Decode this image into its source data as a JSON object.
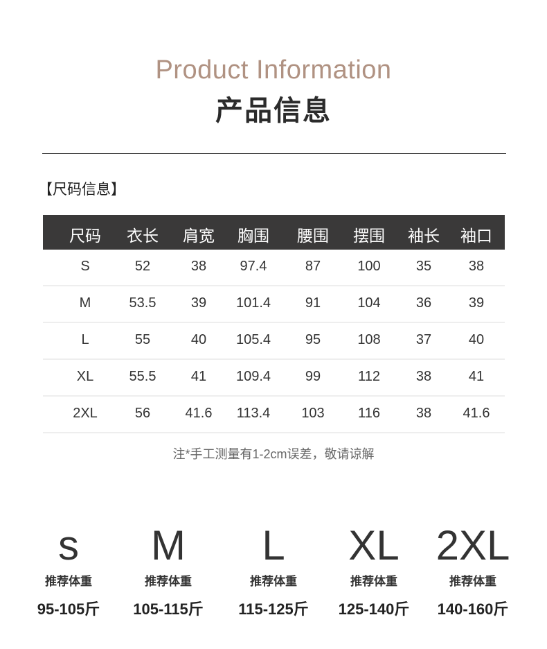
{
  "header": {
    "title_en": "Product Information",
    "title_zh": "产品信息"
  },
  "section_title": "【尺码信息】",
  "table": {
    "columns": [
      "尺码",
      "衣长",
      "肩宽",
      "胸围",
      "腰围",
      "摆围",
      "袖长",
      "袖口"
    ],
    "rows": [
      [
        "S",
        "52",
        "38",
        "97.4",
        "87",
        "100",
        "35",
        "38"
      ],
      [
        "M",
        "53.5",
        "39",
        "101.4",
        "91",
        "104",
        "36",
        "39"
      ],
      [
        "L",
        "55",
        "40",
        "105.4",
        "95",
        "108",
        "37",
        "40"
      ],
      [
        "XL",
        "55.5",
        "41",
        "109.4",
        "99",
        "112",
        "38",
        "41"
      ],
      [
        "2XL",
        "56",
        "41.6",
        "113.4",
        "103",
        "116",
        "38",
        "41.6"
      ]
    ]
  },
  "note": "注*手工测量有1-2cm误差，敬请谅解",
  "recommend": [
    {
      "size": "s",
      "label": "推荐体重",
      "weight": "95-105斤"
    },
    {
      "size": "M",
      "label": "推荐体重",
      "weight": "105-115斤"
    },
    {
      "size": "L",
      "label": "推荐体重",
      "weight": "115-125斤"
    },
    {
      "size": "XL",
      "label": "推荐体重",
      "weight": "125-140斤"
    },
    {
      "size": "2XL",
      "label": "推荐体重",
      "weight": "140-160斤"
    }
  ],
  "colors": {
    "accent": "#b09282",
    "header_bg": "#3a3939"
  }
}
